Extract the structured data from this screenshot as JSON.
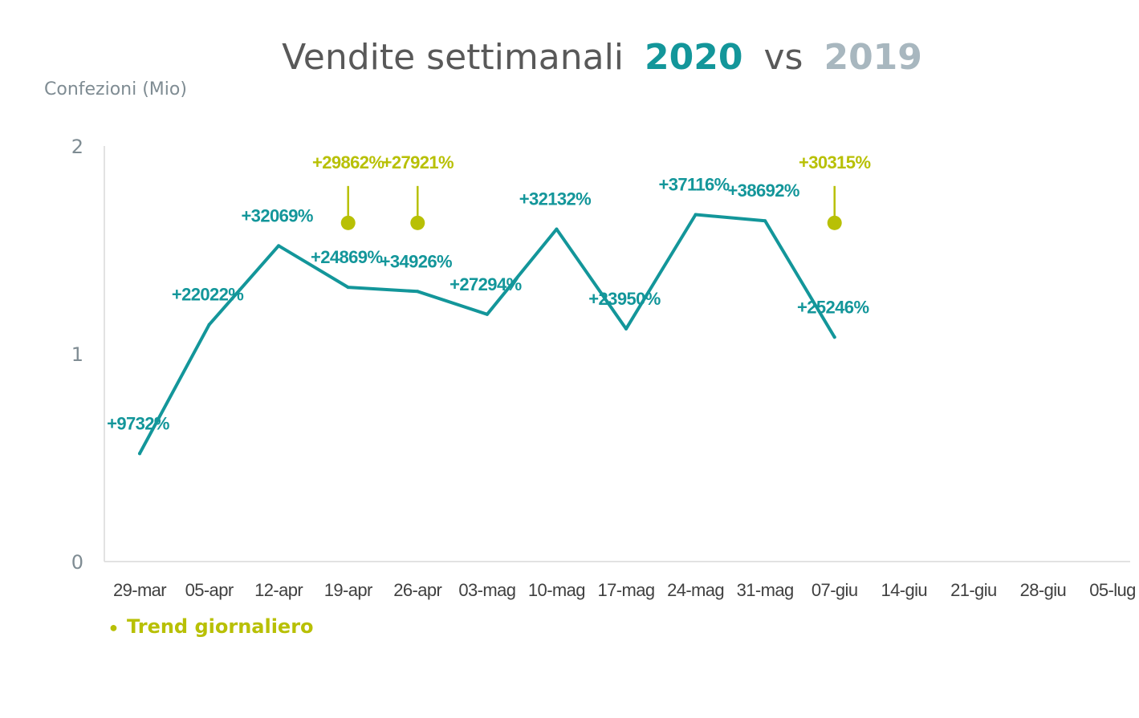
{
  "chart_data": {
    "type": "line",
    "title": {
      "prefix": "Vendite settimanali",
      "highlight": "2020",
      "middle": "vs",
      "compare": "2019"
    },
    "ylabel": "Confezioni (Mio)",
    "xlabel": "",
    "ylim": [
      0,
      2
    ],
    "yticks": [
      "0",
      "1",
      "2"
    ],
    "grid": false,
    "categories": [
      "29-mar",
      "05-apr",
      "12-apr",
      "19-apr",
      "26-apr",
      "03-mag",
      "10-mag",
      "17-mag",
      "24-mag",
      "31-mag",
      "07-giu",
      "14-giu",
      "21-giu",
      "28-giu",
      "05-lug"
    ],
    "series": [
      {
        "values": [
          0.52,
          1.14,
          1.52,
          1.32,
          1.3,
          1.19,
          1.6,
          1.12,
          1.67,
          1.64,
          1.08,
          null,
          null,
          null,
          null
        ],
        "labels": [
          "+9732%",
          "+22022%",
          "+32069%",
          "+24869%",
          "+34926%",
          "+27294%",
          "+32132%",
          "+23950%",
          "+37116%",
          "+38692%",
          "+25246%",
          null,
          null,
          null,
          null
        ]
      }
    ],
    "markers": {
      "name": "Trend giornaliero",
      "points": [
        {
          "category": "19-apr",
          "value": 1.63,
          "label": "+29862%"
        },
        {
          "category": "26-apr",
          "value": 1.63,
          "label": "+27921%"
        },
        {
          "category": "07-giu",
          "value": 1.63,
          "label": "+30315%"
        }
      ]
    },
    "legend": {
      "placement": "bottom-left",
      "bullet": "●",
      "label": "Trend giornaliero"
    },
    "colors": {
      "line": "#13969a",
      "highlight": "#13969a",
      "compare": "#a8b7bf",
      "title_text": "#595959",
      "axis_text": "#7f8c93",
      "axis_line": "#d9d9d9",
      "tick_text": "#404040",
      "marker": "#b8c005"
    }
  }
}
